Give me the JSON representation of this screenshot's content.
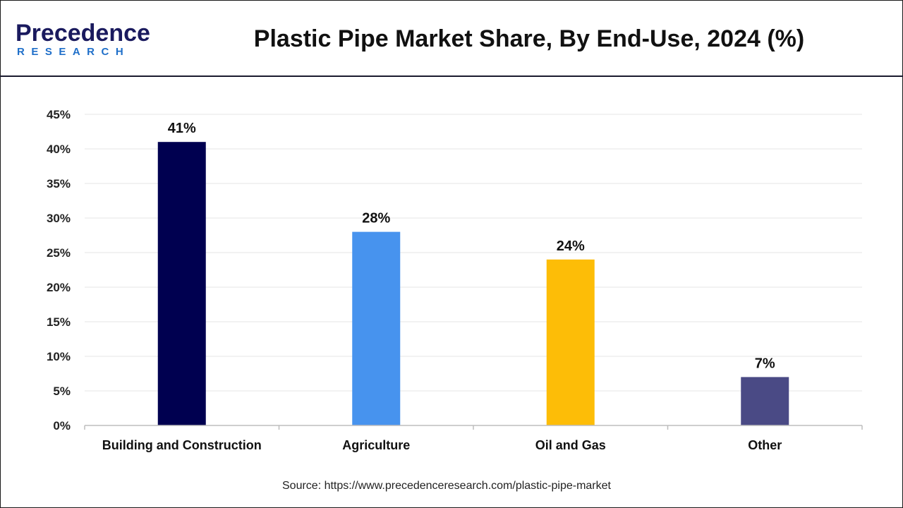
{
  "header": {
    "title": "Plastic Pipe Market Share, By End-Use, 2024 (%)",
    "logo_text_top": "Precedence",
    "logo_text_bottom": "RESEARCH"
  },
  "source": "Source: https://www.precedenceresearch.com/plastic-pipe-market",
  "colors": {
    "brand_dark": "#1a1a5e",
    "brand_blue": "#1f6fc9"
  },
  "chart_data": {
    "type": "bar",
    "title": "Plastic Pipe Market Share, By End-Use, 2024 (%)",
    "categories": [
      "Building and Construction",
      "Agriculture",
      "Oil and Gas",
      "Other"
    ],
    "values": [
      41,
      28,
      24,
      7
    ],
    "data_labels": [
      "41%",
      "28%",
      "24%",
      "7%"
    ],
    "colors": [
      "#000050",
      "#4793ee",
      "#fdbd07",
      "#4a4a85"
    ],
    "yticks": [
      "0%",
      "5%",
      "10%",
      "15%",
      "20%",
      "25%",
      "30%",
      "35%",
      "40%",
      "45%"
    ],
    "ylim": [
      0,
      45
    ],
    "xlabel": "",
    "ylabel": "",
    "grid": true,
    "legend": "none"
  }
}
